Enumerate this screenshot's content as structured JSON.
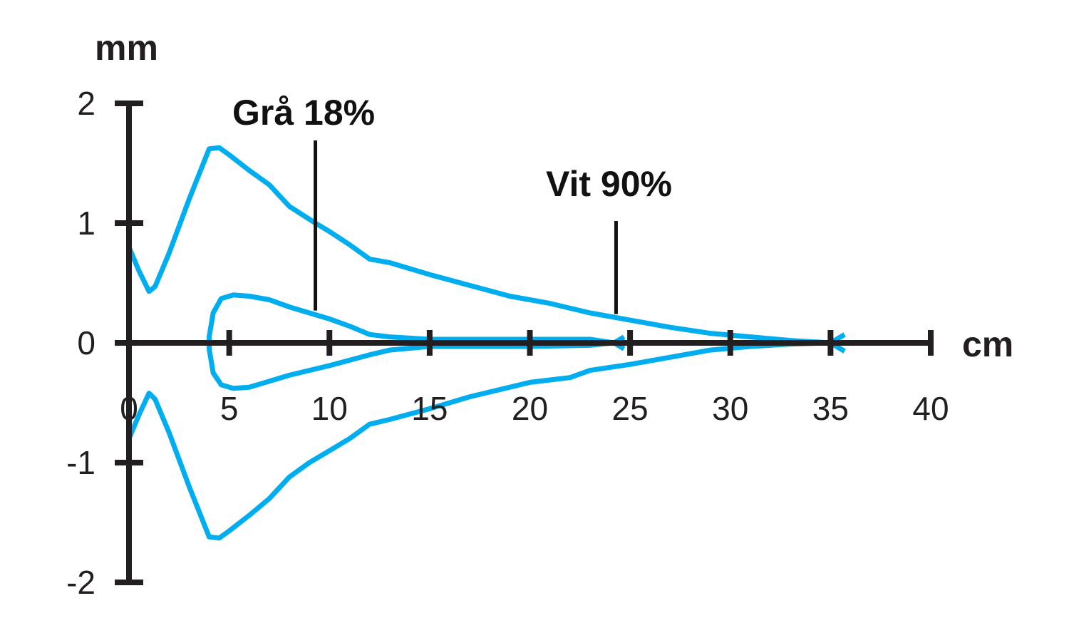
{
  "chart_data": {
    "type": "line",
    "title": "",
    "xlabel": "cm",
    "ylabel": "mm",
    "xlim": [
      0,
      40
    ],
    "ylim": [
      -2,
      2
    ],
    "xticks": [
      0,
      5,
      10,
      15,
      20,
      25,
      30,
      35,
      40
    ],
    "yticks": [
      -2,
      -1,
      0,
      1,
      2
    ],
    "grid": false,
    "line_color": "#00aeef",
    "annotations": [
      {
        "text": "Grå 18%",
        "x": 9.3,
        "y": 0.27
      },
      {
        "text": "Vit 90%",
        "x": 24.3,
        "y": 0.24
      }
    ],
    "series": [
      {
        "points": [
          [
            0,
            0.8
          ],
          [
            0.5,
            0.6
          ],
          [
            1,
            0.43
          ],
          [
            1.3,
            0.47
          ],
          [
            2,
            0.75
          ],
          [
            3,
            1.2
          ],
          [
            4,
            1.62
          ],
          [
            4.5,
            1.63
          ],
          [
            5,
            1.57
          ],
          [
            6,
            1.44
          ],
          [
            7,
            1.32
          ],
          [
            8,
            1.14
          ],
          [
            9.3,
            1.0
          ],
          [
            10,
            0.93
          ],
          [
            11,
            0.82
          ],
          [
            12,
            0.7
          ],
          [
            13,
            0.67
          ],
          [
            15,
            0.57
          ],
          [
            17,
            0.48
          ],
          [
            19,
            0.39
          ],
          [
            20,
            0.36
          ],
          [
            21,
            0.33
          ],
          [
            23,
            0.25
          ],
          [
            25,
            0.19
          ],
          [
            27,
            0.13
          ],
          [
            29,
            0.08
          ],
          [
            31,
            0.05
          ],
          [
            33,
            0.02
          ],
          [
            35,
            0
          ],
          [
            35.7,
            0.07
          ]
        ]
      },
      {
        "points": [
          [
            0,
            -0.8
          ],
          [
            0.5,
            -0.6
          ],
          [
            1,
            -0.42
          ],
          [
            1.3,
            -0.47
          ],
          [
            2,
            -0.75
          ],
          [
            3,
            -1.2
          ],
          [
            4,
            -1.62
          ],
          [
            4.5,
            -1.63
          ],
          [
            5,
            -1.57
          ],
          [
            6,
            -1.44
          ],
          [
            7,
            -1.3
          ],
          [
            8,
            -1.12
          ],
          [
            9,
            -1.0
          ],
          [
            10,
            -0.9
          ],
          [
            11,
            -0.8
          ],
          [
            12,
            -0.68
          ],
          [
            13,
            -0.64
          ],
          [
            15,
            -0.55
          ],
          [
            17,
            -0.45
          ],
          [
            19,
            -0.37
          ],
          [
            20,
            -0.33
          ],
          [
            22,
            -0.29
          ],
          [
            23,
            -0.23
          ],
          [
            25,
            -0.18
          ],
          [
            27,
            -0.12
          ],
          [
            29,
            -0.06
          ],
          [
            31,
            -0.03
          ],
          [
            33,
            -0.01
          ],
          [
            35,
            0
          ],
          [
            35.7,
            -0.07
          ]
        ]
      },
      {
        "points": [
          [
            24.7,
            0.05
          ],
          [
            24.2,
            0
          ],
          [
            23,
            0.03
          ],
          [
            20,
            0.03
          ],
          [
            15,
            0.03
          ],
          [
            13,
            0.05
          ],
          [
            12,
            0.07
          ],
          [
            11,
            0.14
          ],
          [
            10,
            0.2
          ],
          [
            9,
            0.25
          ],
          [
            8,
            0.3
          ],
          [
            7,
            0.36
          ],
          [
            6,
            0.39
          ],
          [
            5.2,
            0.4
          ],
          [
            4.6,
            0.37
          ],
          [
            4.2,
            0.25
          ],
          [
            4,
            0.05
          ],
          [
            4,
            -0.05
          ],
          [
            4.2,
            -0.25
          ],
          [
            4.6,
            -0.35
          ],
          [
            5.2,
            -0.38
          ],
          [
            6,
            -0.37
          ],
          [
            7,
            -0.32
          ],
          [
            8,
            -0.27
          ],
          [
            10,
            -0.19
          ],
          [
            12,
            -0.1
          ],
          [
            13,
            -0.06
          ],
          [
            15,
            -0.03
          ],
          [
            20,
            -0.03
          ],
          [
            23,
            -0.02
          ],
          [
            24.2,
            0
          ],
          [
            24.7,
            -0.05
          ]
        ]
      }
    ]
  }
}
